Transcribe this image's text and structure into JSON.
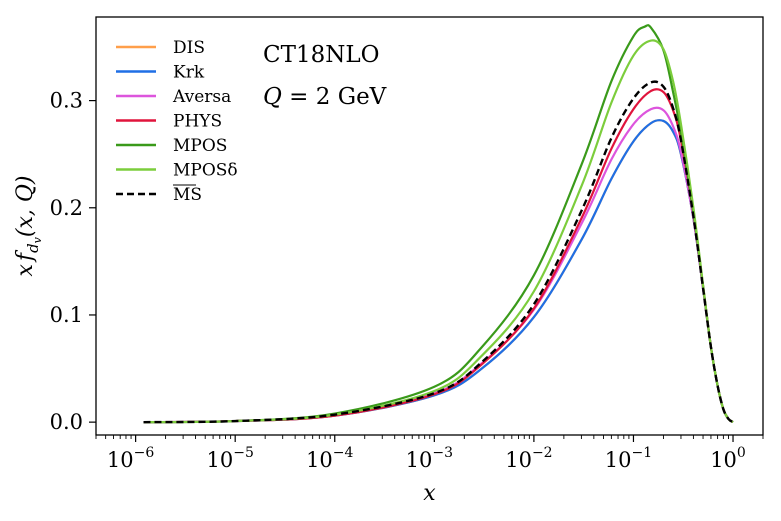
{
  "chart_data": {
    "type": "line",
    "x_scale": "log",
    "xlim": [
      4e-07,
      2.0
    ],
    "ylim": [
      -0.012,
      0.378
    ],
    "xlabel": "x",
    "ylabel": "x f_{d_v}(x, Q)",
    "x_ticks": [
      {
        "value": 1e-06,
        "mant": "10",
        "exp": "−6"
      },
      {
        "value": 1e-05,
        "mant": "10",
        "exp": "−5"
      },
      {
        "value": 0.0001,
        "mant": "10",
        "exp": "−4"
      },
      {
        "value": 0.001,
        "mant": "10",
        "exp": "−3"
      },
      {
        "value": 0.01,
        "mant": "10",
        "exp": "−2"
      },
      {
        "value": 0.1,
        "mant": "10",
        "exp": "−1"
      },
      {
        "value": 1,
        "mant": "10",
        "exp": "0"
      }
    ],
    "y_ticks": [
      {
        "value": 0.0,
        "label": "0.0"
      },
      {
        "value": 0.1,
        "label": "0.1"
      },
      {
        "value": 0.2,
        "label": "0.2"
      },
      {
        "value": 0.3,
        "label": "0.3"
      }
    ],
    "annotations": [
      "CT18NLO",
      "Q = 2 GeV"
    ],
    "grid": false,
    "legend_position": "upper-left",
    "series": [
      {
        "name": "DIS",
        "color": "#ff9f4a",
        "dash": "solid",
        "x": [
          1.2e-06,
          1e-05,
          0.0001,
          0.001,
          0.003,
          0.01,
          0.03,
          0.06,
          0.1,
          0.15,
          0.2,
          0.25,
          0.3,
          0.4,
          0.5,
          0.6,
          0.7,
          0.8,
          0.9,
          1.0
        ],
        "y": [
          0.0,
          0.001,
          0.006,
          0.025,
          0.05,
          0.098,
          0.17,
          0.227,
          0.262,
          0.279,
          0.281,
          0.271,
          0.25,
          0.19,
          0.125,
          0.07,
          0.034,
          0.012,
          0.003,
          0.0
        ]
      },
      {
        "name": "Krk",
        "color": "#1f6fe5",
        "dash": "solid",
        "x": [
          1.2e-06,
          1e-05,
          0.0001,
          0.001,
          0.003,
          0.01,
          0.03,
          0.06,
          0.1,
          0.15,
          0.2,
          0.25,
          0.3,
          0.4,
          0.5,
          0.6,
          0.7,
          0.8,
          0.9,
          1.0
        ],
        "y": [
          0.0,
          0.001,
          0.006,
          0.025,
          0.05,
          0.098,
          0.17,
          0.227,
          0.262,
          0.279,
          0.281,
          0.271,
          0.25,
          0.19,
          0.125,
          0.07,
          0.034,
          0.012,
          0.003,
          0.0
        ]
      },
      {
        "name": "Aversa",
        "color": "#dd55dd",
        "dash": "solid",
        "x": [
          1.2e-06,
          1e-05,
          0.0001,
          0.001,
          0.003,
          0.01,
          0.03,
          0.06,
          0.1,
          0.15,
          0.2,
          0.25,
          0.3,
          0.4,
          0.5,
          0.6,
          0.7,
          0.8,
          0.9,
          1.0
        ],
        "y": [
          0.0,
          0.001,
          0.007,
          0.027,
          0.055,
          0.105,
          0.185,
          0.245,
          0.278,
          0.292,
          0.291,
          0.276,
          0.252,
          0.19,
          0.125,
          0.07,
          0.034,
          0.012,
          0.003,
          0.0
        ]
      },
      {
        "name": "PHYS",
        "color": "#e0143c",
        "dash": "solid",
        "x": [
          1.2e-06,
          1e-05,
          0.0001,
          0.001,
          0.003,
          0.01,
          0.03,
          0.06,
          0.1,
          0.15,
          0.2,
          0.25,
          0.3,
          0.4,
          0.5,
          0.6,
          0.7,
          0.8,
          0.9,
          1.0
        ],
        "y": [
          0.0,
          0.001,
          0.006,
          0.026,
          0.054,
          0.106,
          0.19,
          0.255,
          0.292,
          0.309,
          0.308,
          0.291,
          0.263,
          0.195,
          0.127,
          0.07,
          0.034,
          0.012,
          0.003,
          0.0
        ]
      },
      {
        "name": "MPOS",
        "color": "#3a9a1a",
        "dash": "solid",
        "x": [
          1.2e-06,
          1e-05,
          0.0001,
          0.001,
          0.003,
          0.01,
          0.03,
          0.06,
          0.1,
          0.13,
          0.15,
          0.2,
          0.25,
          0.3,
          0.4,
          0.5,
          0.6,
          0.7,
          0.8,
          0.9,
          1.0
        ],
        "y": [
          0.0,
          0.001,
          0.008,
          0.033,
          0.07,
          0.137,
          0.24,
          0.318,
          0.36,
          0.369,
          0.368,
          0.347,
          0.308,
          0.27,
          0.195,
          0.127,
          0.07,
          0.034,
          0.012,
          0.003,
          0.0
        ]
      },
      {
        "name": "MPOSδ",
        "color": "#7ccd3c",
        "dash": "solid",
        "x": [
          1.2e-06,
          1e-05,
          0.0001,
          0.001,
          0.003,
          0.01,
          0.03,
          0.06,
          0.1,
          0.15,
          0.2,
          0.25,
          0.3,
          0.4,
          0.5,
          0.6,
          0.7,
          0.8,
          0.9,
          1.0
        ],
        "y": [
          0.0,
          0.001,
          0.007,
          0.029,
          0.062,
          0.122,
          0.22,
          0.298,
          0.342,
          0.356,
          0.348,
          0.318,
          0.278,
          0.2,
          0.128,
          0.07,
          0.034,
          0.012,
          0.003,
          0.0
        ]
      },
      {
        "name": "MS",
        "color": "#000000",
        "dash": "dashed",
        "x": [
          1.2e-06,
          1e-05,
          0.0001,
          0.001,
          0.003,
          0.01,
          0.03,
          0.06,
          0.1,
          0.15,
          0.2,
          0.25,
          0.3,
          0.4,
          0.5,
          0.6,
          0.7,
          0.8,
          0.9,
          1.0
        ],
        "y": [
          0.0,
          0.001,
          0.007,
          0.027,
          0.056,
          0.11,
          0.197,
          0.265,
          0.302,
          0.317,
          0.313,
          0.293,
          0.263,
          0.192,
          0.125,
          0.07,
          0.034,
          0.012,
          0.003,
          0.0
        ]
      }
    ]
  }
}
